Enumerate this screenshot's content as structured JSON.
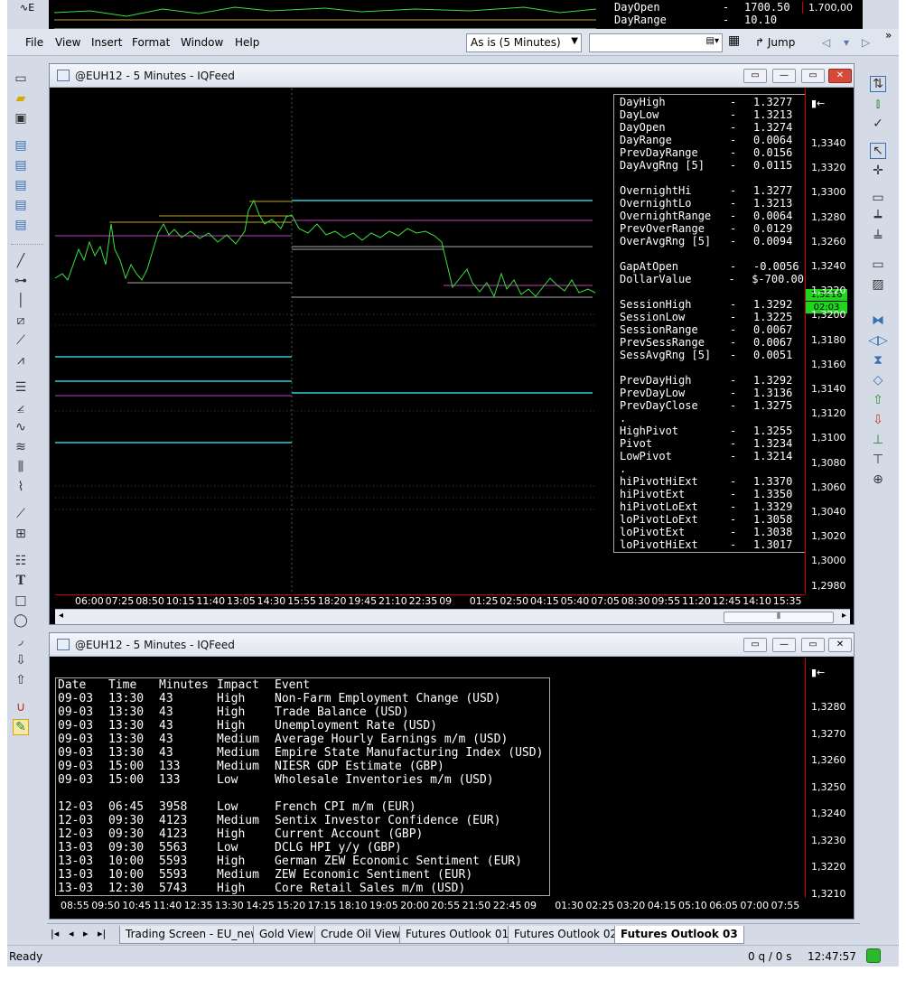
{
  "top_strip": {
    "lines": [
      {
        "label": "DayOpen",
        "dash": "-",
        "value": "1700.50"
      },
      {
        "label": "DayRange",
        "dash": "-",
        "value": "10.10"
      }
    ],
    "axis_value": "1.700,00",
    "tool_label": "∿E"
  },
  "menu": [
    "File",
    "View",
    "Insert",
    "Format",
    "Window",
    "Help"
  ],
  "toolbar": {
    "interval_select": "As is (5 Minutes)",
    "search_value": "",
    "jump_label": "Jump",
    "overflow_label": "»"
  },
  "chart_window": {
    "title": "@EUH12 - 5 Minutes - IQFeed",
    "stats": [
      {
        "k": "DayHigh",
        "v": "1.3277"
      },
      {
        "k": "DayLow",
        "v": "1.3213"
      },
      {
        "k": "DayOpen",
        "v": "1.3274"
      },
      {
        "k": "DayRange",
        "v": "0.0064"
      },
      {
        "k": "PrevDayRange",
        "v": "0.0156"
      },
      {
        "k": "DayAvgRng [5]",
        "v": "0.0115"
      },
      {
        "k": "",
        "v": ""
      },
      {
        "k": "OvernightHi",
        "v": "1.3277"
      },
      {
        "k": "OvernightLo",
        "v": "1.3213"
      },
      {
        "k": "OvernightRange",
        "v": "0.0064"
      },
      {
        "k": "PrevOverRange",
        "v": "0.0129"
      },
      {
        "k": "OverAvgRng [5]",
        "v": "0.0094"
      },
      {
        "k": "",
        "v": ""
      },
      {
        "k": "GapAtOpen",
        "v": "-0.0056"
      },
      {
        "k": "DollarValue",
        "v": "$-700.00"
      },
      {
        "k": "",
        "v": ""
      },
      {
        "k": "SessionHigh",
        "v": "1.3292"
      },
      {
        "k": "SessionLow",
        "v": "1.3225"
      },
      {
        "k": "SessionRange",
        "v": "0.0067"
      },
      {
        "k": "PrevSessRange",
        "v": "0.0067"
      },
      {
        "k": "SessAvgRng [5]",
        "v": "0.0051"
      },
      {
        "k": "",
        "v": ""
      },
      {
        "k": "PrevDayHigh",
        "v": "1.3292"
      },
      {
        "k": "PrevDayLow",
        "v": "1.3136"
      },
      {
        "k": "PrevDayClose",
        "v": "1.3275"
      },
      {
        "k": ".",
        "v": ""
      },
      {
        "k": "HighPivot",
        "v": "1.3255"
      },
      {
        "k": "Pivot",
        "v": "1.3234"
      },
      {
        "k": "LowPivot",
        "v": "1.3214"
      },
      {
        "k": ".",
        "v": ""
      },
      {
        "k": "hiPivotHiExt",
        "v": "1.3370"
      },
      {
        "k": "hiPivotExt",
        "v": "1.3350"
      },
      {
        "k": "hiPivotLoExt",
        "v": "1.3329"
      },
      {
        "k": "loPivotLoExt",
        "v": "1.3058"
      },
      {
        "k": "loPivotExt",
        "v": "1.3038"
      },
      {
        "k": "loPivotHiExt",
        "v": "1.3017"
      }
    ],
    "y_labels": [
      "1,3340",
      "1,3320",
      "1,3300",
      "1,3280",
      "1,3260",
      "1,3240",
      "1,3220",
      "1,3200",
      "1,3180",
      "1,3160",
      "1,3140",
      "1,3120",
      "1,3100",
      "1,3080",
      "1,3060",
      "1,3040",
      "1,3020",
      "1,3000",
      "1,2980"
    ],
    "x_labels": [
      "06:00",
      "07:25",
      "08:50",
      "10:15",
      "11:40",
      "13:05",
      "14:30",
      "15:55",
      "18:20",
      "19:45",
      "21:10",
      "22:35",
      "09",
      "01:25",
      "02:50",
      "04:15",
      "05:40",
      "07:05",
      "08:30",
      "09:55",
      "11:20",
      "12:45",
      "14:10",
      "15:35"
    ],
    "last_price": "1,3216",
    "timer": "02:03"
  },
  "events_window": {
    "title": "@EUH12 - 5 Minutes - IQFeed",
    "headers": [
      "Date",
      "Time",
      "Minutes",
      "Impact",
      "Event"
    ],
    "rows": [
      [
        "09-03",
        "13:30",
        "43",
        "High",
        "Non-Farm Employment Change (USD)"
      ],
      [
        "09-03",
        "13:30",
        "43",
        "High",
        "Trade Balance (USD)"
      ],
      [
        "09-03",
        "13:30",
        "43",
        "High",
        "Unemployment Rate (USD)"
      ],
      [
        "09-03",
        "13:30",
        "43",
        "Medium",
        "Average Hourly Earnings m/m (USD)"
      ],
      [
        "09-03",
        "13:30",
        "43",
        "Medium",
        "Empire State Manufacturing Index (USD)"
      ],
      [
        "09-03",
        "15:00",
        "133",
        "Medium",
        "NIESR GDP Estimate (GBP)"
      ],
      [
        "09-03",
        "15:00",
        "133",
        "Low",
        "Wholesale Inventories m/m (USD)"
      ],
      [
        "",
        "",
        "",
        "",
        ""
      ],
      [
        "12-03",
        "06:45",
        "3958",
        "Low",
        "French CPI m/m (EUR)"
      ],
      [
        "12-03",
        "09:30",
        "4123",
        "Medium",
        "Sentix Investor Confidence (EUR)"
      ],
      [
        "12-03",
        "09:30",
        "4123",
        "High",
        "Current Account (GBP)"
      ],
      [
        "13-03",
        "09:30",
        "5563",
        "Low",
        "DCLG HPI y/y (GBP)"
      ],
      [
        "13-03",
        "10:00",
        "5593",
        "High",
        "German ZEW Economic Sentiment (EUR)"
      ],
      [
        "13-03",
        "10:00",
        "5593",
        "Medium",
        "ZEW Economic Sentiment (EUR)"
      ],
      [
        "13-03",
        "12:30",
        "5743",
        "High",
        "Core Retail Sales m/m (USD)"
      ]
    ],
    "y_labels": [
      "1,3280",
      "1,3270",
      "1,3260",
      "1,3250",
      "1,3240",
      "1,3230",
      "1,3220",
      "1,3210"
    ],
    "x_labels": [
      "08:55",
      "09:50",
      "10:45",
      "11:40",
      "12:35",
      "13:30",
      "14:25",
      "15:20",
      "17:15",
      "18:10",
      "19:05",
      "20:00",
      "20:55",
      "21:50",
      "22:45",
      "09",
      "01:30",
      "02:25",
      "03:20",
      "04:15",
      "05:10",
      "06:05",
      "07:00",
      "07:55"
    ]
  },
  "tabs": [
    "Trading Screen - EU_new",
    "Gold View",
    "Crude Oil View",
    "Futures Outlook 01",
    "Futures Outlook 02",
    "Futures Outlook 03"
  ],
  "active_tab": "Futures Outlook 03",
  "status": {
    "left": "Ready",
    "queue": "0 q / 0 s",
    "time": "12:47:57"
  },
  "colors": {
    "price": "#3be03b",
    "teal": "#1f9aa0",
    "magenta": "#c040c0",
    "gold": "#c8a020",
    "axis_border": "#cc0000"
  }
}
